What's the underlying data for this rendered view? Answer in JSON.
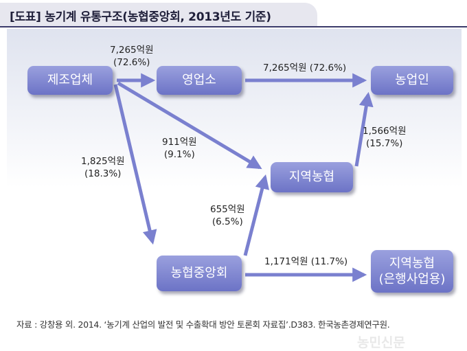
{
  "title": "[도표] 농기계 유통구조(농협중앙회, 2013년도 기준)",
  "nodes": {
    "manufacturer": "제조업체",
    "dealer": "영업소",
    "farmer": "농업인",
    "local_coop": "지역농협",
    "nh_central": "농협중앙회",
    "local_coop_bank_line1": "지역농협",
    "local_coop_bank_line2": "(은행사업용)"
  },
  "flows": {
    "mfr_to_dealer_amount": "7,265억원",
    "mfr_to_dealer_share": "(72.6%)",
    "dealer_to_farmer": "7,265억원 (72.6%)",
    "mfr_to_local_amount": "911억원",
    "mfr_to_local_share": "(9.1%)",
    "mfr_to_central_amount": "1,825억원",
    "mfr_to_central_share": "(18.3%)",
    "local_to_farmer_amount": "1,566억원",
    "local_to_farmer_share": "(15.7%)",
    "central_to_local_amount": "655억원",
    "central_to_local_share": "(6.5%)",
    "central_to_bank": "1,171억원 (11.7%)"
  },
  "source": "자료 : 강창용 외. 2014. ‘농기계 산업의 발전 및 수출확대 방안 토론회 자료집’.D383. 한국농촌경제연구원.",
  "watermark": "농민신문",
  "colors": {
    "node": "#7a80d0",
    "arrow": "#7a80cf",
    "title_line": "#3a3a6a"
  }
}
